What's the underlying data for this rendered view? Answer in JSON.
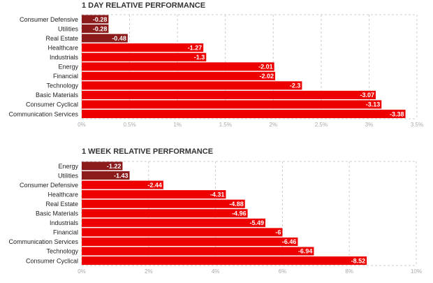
{
  "chart_data": [
    {
      "type": "bar",
      "orientation": "horizontal",
      "title": "1 DAY RELATIVE PERFORMANCE",
      "categories": [
        "Consumer Defensive",
        "Utilities",
        "Real Estate",
        "Healthcare",
        "Industrials",
        "Energy",
        "Financial",
        "Technology",
        "Basic Materials",
        "Consumer Cyclical",
        "Communication Services"
      ],
      "values": [
        -0.28,
        -0.28,
        -0.48,
        -1.27,
        -1.3,
        -2.01,
        -2.02,
        -2.3,
        -3.07,
        -3.13,
        -3.38
      ],
      "value_labels": [
        "-0.28",
        "-0.28",
        "-0.48",
        "-1.27",
        "-1.3",
        "-2.01",
        "-2.02",
        "-2.3",
        "-3.07",
        "-3.13",
        "-3.38"
      ],
      "xlim": [
        0,
        3.5
      ],
      "xticks": [
        0,
        0.5,
        1,
        1.5,
        2,
        2.5,
        3,
        3.5
      ],
      "xtick_labels": [
        "0%",
        "0.5%",
        "1%",
        "1.5%",
        "2%",
        "2.5%",
        "3%",
        "3.5%"
      ],
      "grid": true
    },
    {
      "type": "bar",
      "orientation": "horizontal",
      "title": "1 WEEK RELATIVE PERFORMANCE",
      "categories": [
        "Energy",
        "Utilities",
        "Consumer Defensive",
        "Healthcare",
        "Real Estate",
        "Basic Materials",
        "Industrials",
        "Financial",
        "Communication Services",
        "Technology",
        "Consumer Cyclical"
      ],
      "values": [
        -1.22,
        -1.43,
        -2.44,
        -4.31,
        -4.88,
        -4.96,
        -5.49,
        -6,
        -6.46,
        -6.94,
        -8.52
      ],
      "value_labels": [
        "-1.22",
        "-1.43",
        "-2.44",
        "-4.31",
        "-4.88",
        "-4.96",
        "-5.49",
        "-6",
        "-6.46",
        "-6.94",
        "-8.52"
      ],
      "xlim": [
        0,
        10
      ],
      "xticks": [
        0,
        2,
        4,
        6,
        8,
        10
      ],
      "xtick_labels": [
        "0%",
        "2%",
        "4%",
        "6%",
        "8%",
        "10%"
      ],
      "grid": true
    }
  ],
  "colors": {
    "dark": "#8b1a1a",
    "bright": "#ee0000",
    "grid": "#cccccc"
  }
}
